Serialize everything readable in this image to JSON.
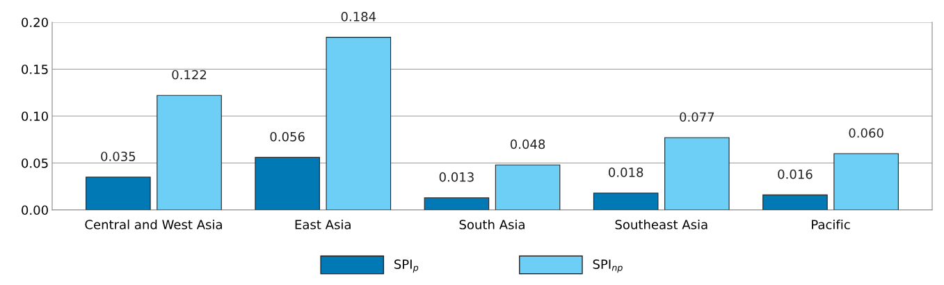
{
  "chart_data": {
    "type": "bar",
    "categories": [
      "Central and West Asia",
      "East Asia",
      "South Asia",
      "Southeast Asia",
      "Pacific"
    ],
    "series": [
      {
        "name": "SPI$_{p}$",
        "color": "#0079b4",
        "values": [
          0.035,
          0.056,
          0.013,
          0.018,
          0.016
        ],
        "value_labels": [
          "0.035",
          "0.056",
          "0.013",
          "0.018",
          "0.016"
        ]
      },
      {
        "name": "SPI$_{np}$",
        "color": "#6dcff6",
        "values": [
          0.122,
          0.184,
          0.048,
          0.077,
          0.06
        ],
        "value_labels": [
          "0.122",
          "0.184",
          "0.048",
          "0.077",
          "0.060"
        ]
      }
    ],
    "ylim": [
      0,
      0.2
    ],
    "yticks": [
      {
        "value": 0,
        "label": "0.00"
      },
      {
        "value": 0.05,
        "label": "0.05"
      },
      {
        "value": 0.1,
        "label": "0.10"
      },
      {
        "value": 0.15,
        "label": "0.15"
      },
      {
        "value": 0.2,
        "label": "0.20"
      }
    ],
    "grid": "y",
    "legend": "bottom"
  }
}
